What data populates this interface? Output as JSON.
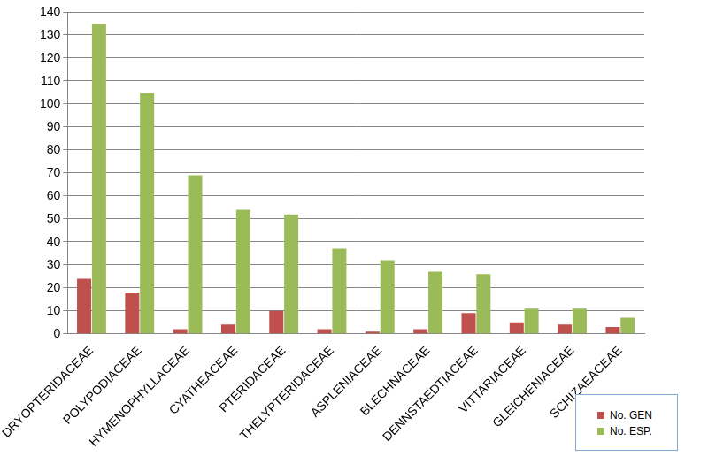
{
  "chart_data": {
    "type": "bar",
    "categories": [
      "DRYOPTERIDACEAE",
      "POLYPODIACEAE",
      "HYMENOPHYLLACEAE",
      "CYATHEACEAE",
      "PTERIDACEAE",
      "THELYPTERIDACEAE",
      "ASPLENIACEAE",
      "BLECHNACEAE",
      "DENNSTAEDTIACEAE",
      "VITTARIACEAE",
      "GLEICHENIACEAE",
      "SCHIZAEACEAE"
    ],
    "series": [
      {
        "name": "No. GEN",
        "color": "#c0504d",
        "values": [
          24,
          18,
          2,
          4,
          10,
          2,
          1,
          2,
          9,
          5,
          4,
          3
        ]
      },
      {
        "name": "No. ESP.",
        "color": "#9bbb59",
        "values": [
          135,
          105,
          69,
          54,
          52,
          37,
          32,
          27,
          26,
          11,
          11,
          7
        ]
      }
    ],
    "ylim": [
      0,
      140
    ],
    "yticks": [
      0,
      10,
      20,
      30,
      40,
      50,
      60,
      70,
      80,
      90,
      100,
      110,
      120,
      130,
      140
    ],
    "grid": true,
    "legend": "lower right"
  }
}
